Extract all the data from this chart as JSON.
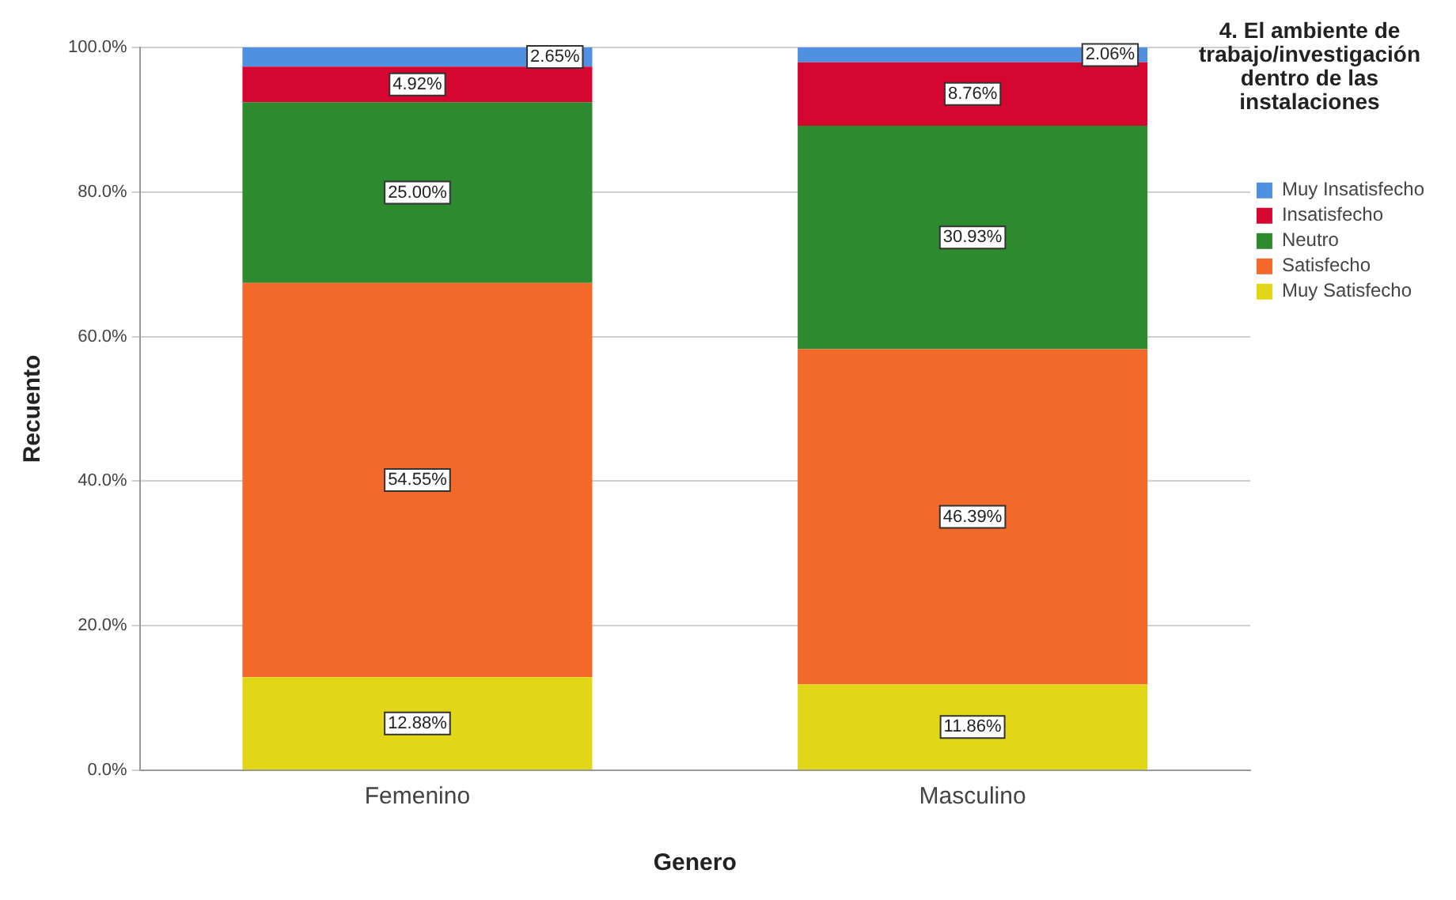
{
  "chart_data": {
    "type": "bar",
    "stacked": true,
    "xlabel": "Genero",
    "ylabel": "Recuento",
    "legend_title": "4. El ambiente de trabajo/investigación dentro de las instalaciones",
    "legend": "top right",
    "grid": "y",
    "categories": [
      "Femenino",
      "Masculino"
    ],
    "ylim": [
      0,
      100
    ],
    "yticks": [
      {
        "value": 0,
        "label": "0.0%"
      },
      {
        "value": 20,
        "label": "20.0%"
      },
      {
        "value": 40,
        "label": "40.0%"
      },
      {
        "value": 60,
        "label": "60.0%"
      },
      {
        "value": 80,
        "label": "80.0%"
      },
      {
        "value": 100,
        "label": "100.0%"
      }
    ],
    "series": [
      {
        "name": "Muy Satisfecho",
        "color": "#e2d716",
        "values": [
          12.88,
          11.86
        ],
        "value_labels": [
          "12.88%",
          "11.86%"
        ]
      },
      {
        "name": "Satisfecho",
        "color": "#f2692a",
        "values": [
          54.55,
          46.39
        ],
        "value_labels": [
          "54.55%",
          "46.39%"
        ]
      },
      {
        "name": "Neutro",
        "color": "#2e8a2e",
        "values": [
          25.0,
          30.93
        ],
        "value_labels": [
          "25.00%",
          "30.93%"
        ]
      },
      {
        "name": "Insatisfecho",
        "color": "#d5062f",
        "values": [
          4.92,
          8.76
        ],
        "value_labels": [
          "4.92%",
          "8.76%"
        ]
      },
      {
        "name": "Muy Insatisfecho",
        "color": "#4f90e0",
        "values": [
          2.65,
          2.06
        ],
        "value_labels": [
          "2.65%",
          "2.06%"
        ]
      }
    ]
  }
}
